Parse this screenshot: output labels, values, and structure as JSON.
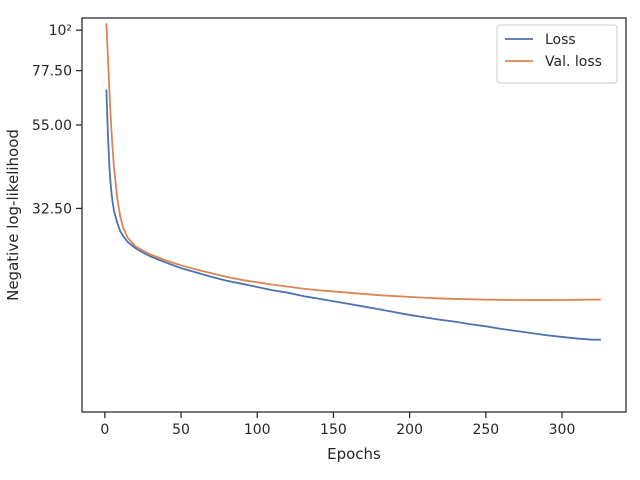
{
  "chart_data": {
    "type": "line",
    "title": "",
    "xlabel": "Epochs",
    "ylabel": "Negative log-likelihood",
    "xlim": [
      -15,
      342
    ],
    "ylim": [
      9,
      108
    ],
    "yscale": "log",
    "grid": false,
    "legend_position": "top-right",
    "x_ticks": [
      0,
      50,
      100,
      150,
      200,
      250,
      300
    ],
    "x_tick_labels": [
      "0",
      "50",
      "100",
      "150",
      "200",
      "250",
      "300"
    ],
    "y_ticks": [
      32.5,
      55.0,
      77.5,
      100
    ],
    "y_tick_labels": [
      "32.50",
      "55.00",
      "77.50",
      "10²"
    ],
    "series": [
      {
        "name": "Loss",
        "color": "#4c72b0",
        "x": [
          1,
          2,
          3,
          4,
          5,
          6,
          8,
          10,
          12,
          15,
          20,
          25,
          30,
          40,
          50,
          60,
          70,
          80,
          90,
          100,
          110,
          120,
          130,
          140,
          150,
          160,
          170,
          180,
          190,
          200,
          210,
          220,
          230,
          240,
          250,
          260,
          270,
          280,
          290,
          300,
          310,
          320,
          325
        ],
        "y": [
          68.5,
          52.0,
          42.0,
          37.0,
          34.0,
          32.0,
          29.8,
          28.2,
          27.3,
          26.3,
          25.3,
          24.6,
          24.0,
          23.1,
          22.3,
          21.7,
          21.1,
          20.6,
          20.2,
          19.8,
          19.4,
          19.1,
          18.7,
          18.4,
          18.1,
          17.8,
          17.5,
          17.2,
          16.9,
          16.6,
          16.35,
          16.1,
          15.9,
          15.65,
          15.45,
          15.2,
          15.0,
          14.8,
          14.6,
          14.45,
          14.3,
          14.2,
          14.2
        ]
      },
      {
        "name": "Val. loss",
        "color": "#dd8452",
        "x": [
          1,
          2,
          3,
          4,
          5,
          6,
          8,
          10,
          12,
          15,
          20,
          25,
          30,
          40,
          50,
          60,
          70,
          80,
          90,
          100,
          110,
          120,
          130,
          140,
          150,
          160,
          170,
          180,
          190,
          200,
          210,
          220,
          230,
          240,
          250,
          260,
          270,
          280,
          290,
          300,
          310,
          320,
          325
        ],
        "y": [
          104.0,
          85.0,
          68.0,
          56.0,
          48.0,
          42.0,
          35.0,
          31.0,
          28.8,
          27.0,
          25.6,
          24.9,
          24.3,
          23.4,
          22.7,
          22.1,
          21.6,
          21.1,
          20.7,
          20.4,
          20.1,
          19.85,
          19.6,
          19.4,
          19.25,
          19.1,
          18.95,
          18.8,
          18.7,
          18.6,
          18.5,
          18.42,
          18.36,
          18.32,
          18.28,
          18.26,
          18.24,
          18.23,
          18.23,
          18.24,
          18.26,
          18.28,
          18.3
        ]
      }
    ]
  }
}
